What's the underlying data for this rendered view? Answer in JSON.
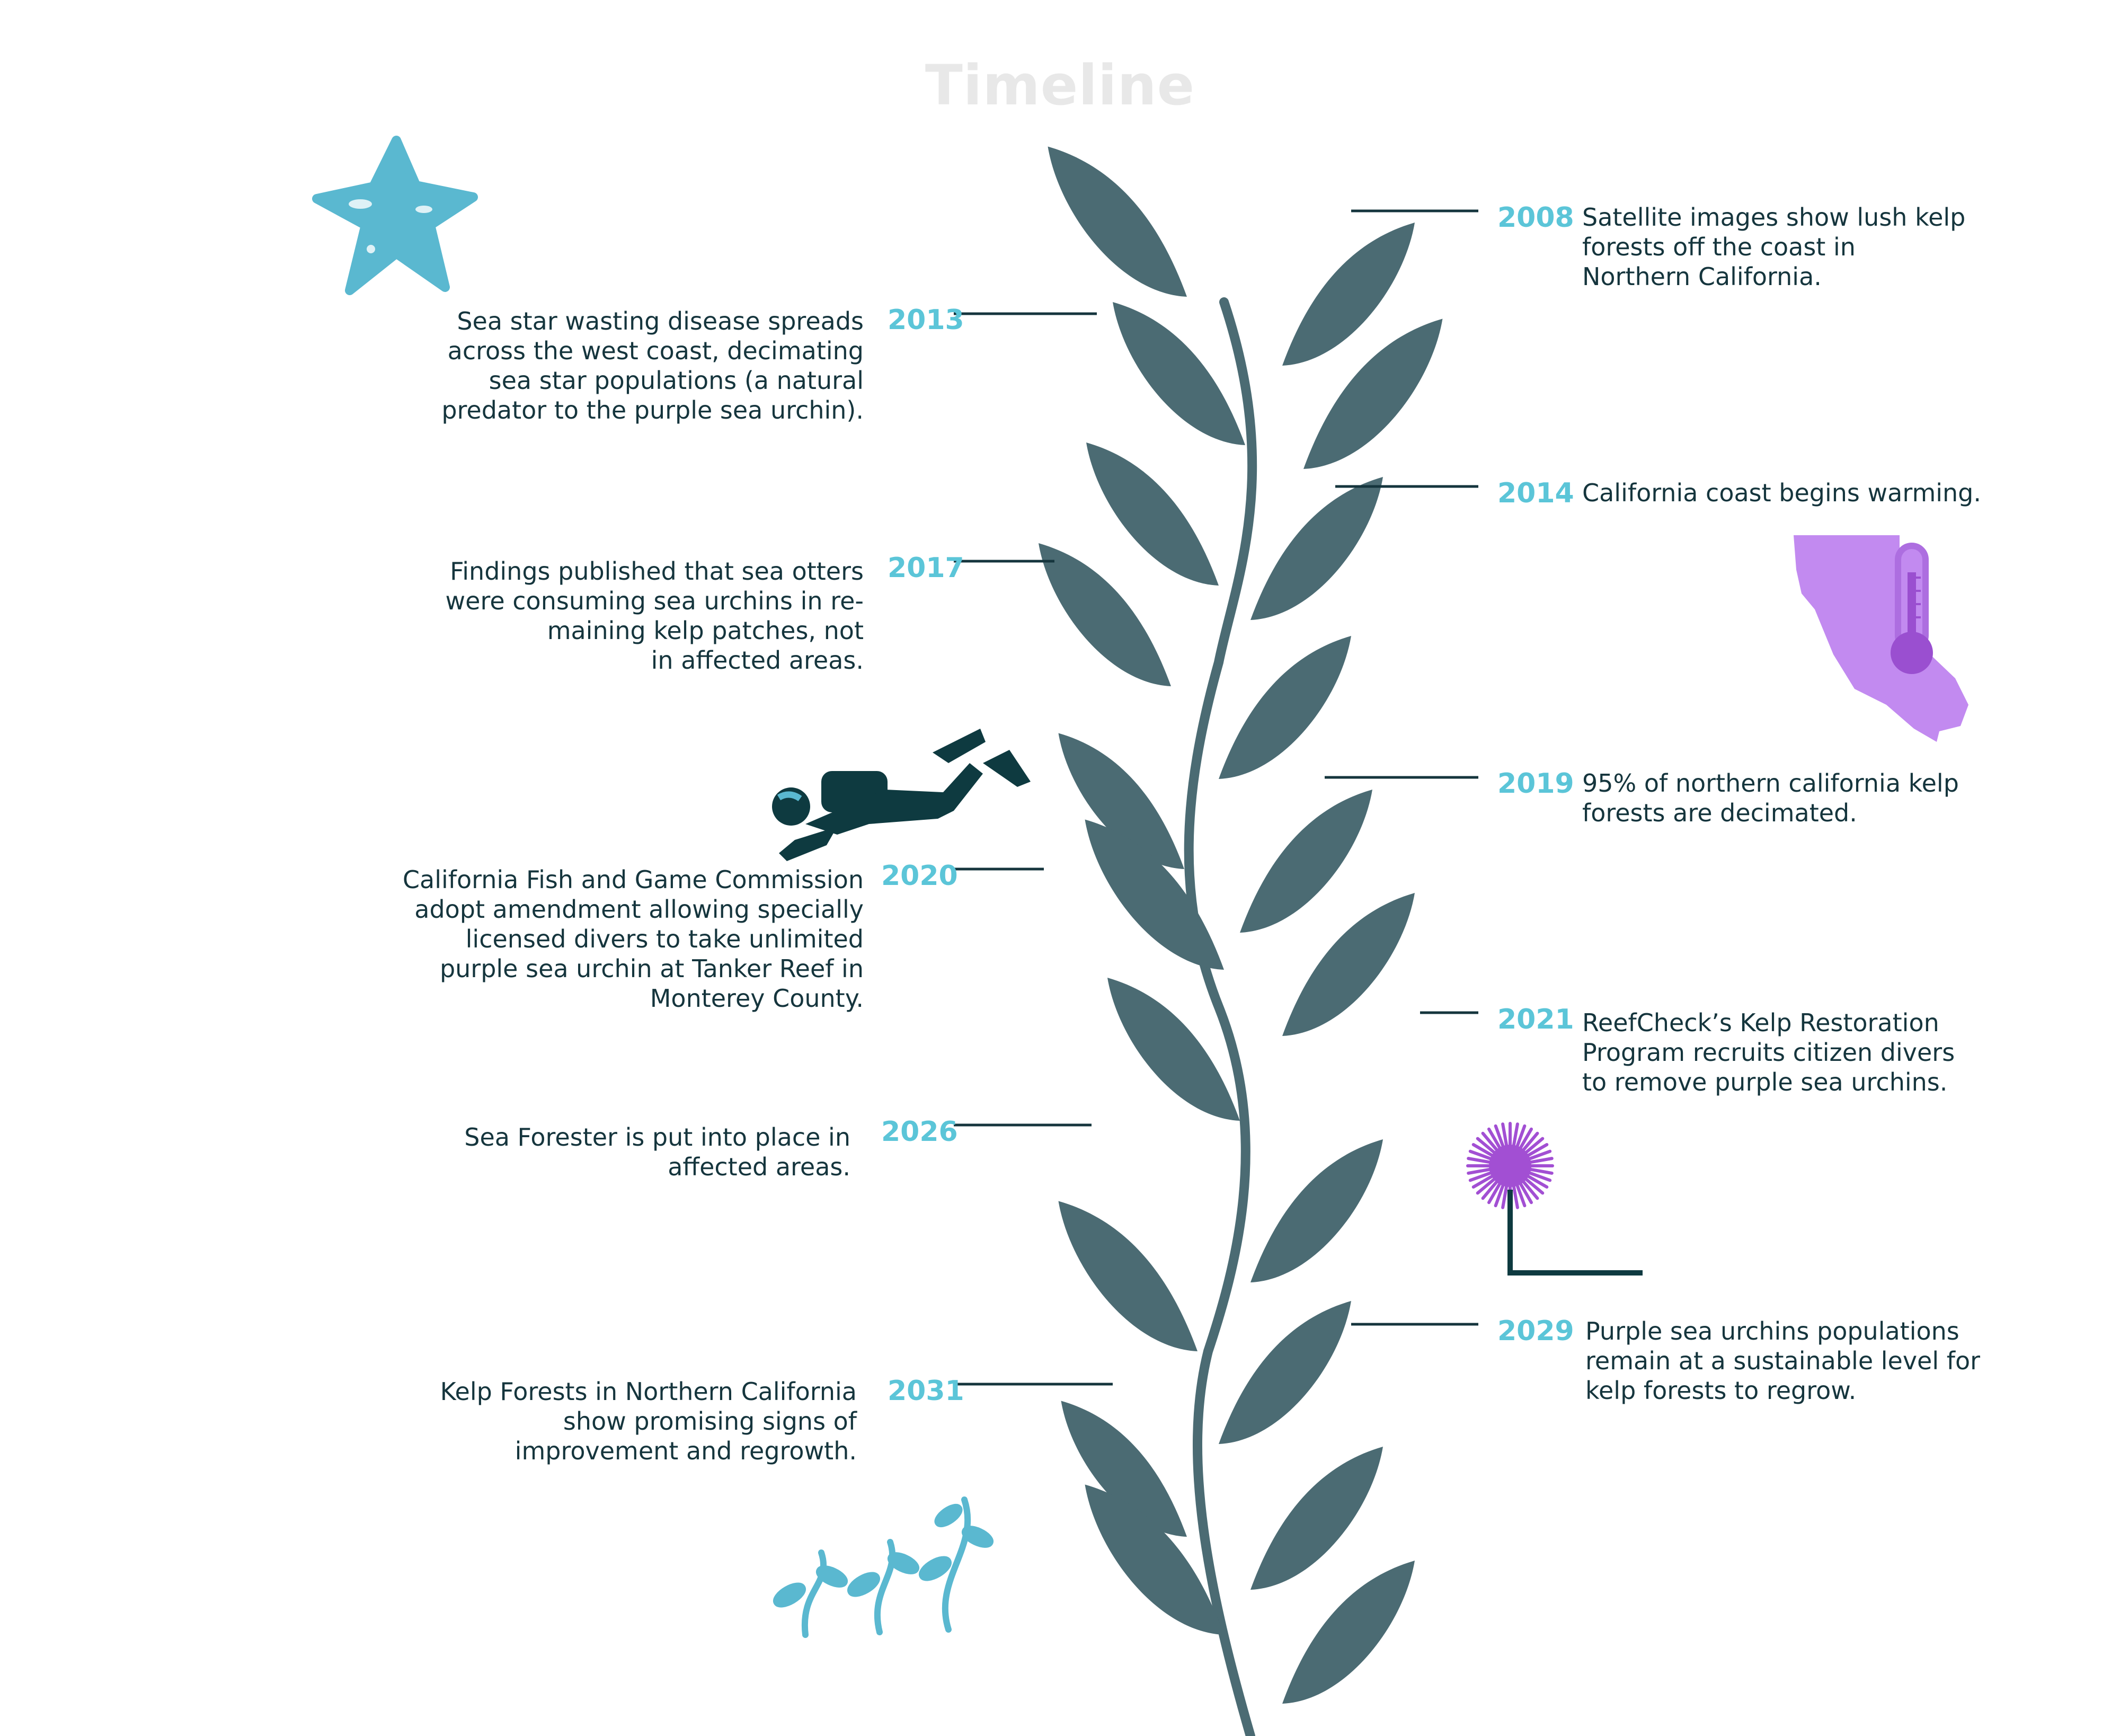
{
  "title": "Timeline",
  "colors": {
    "kelp": "#4b6b73",
    "year": "#5bc5d8",
    "text": "#15353d",
    "accent_purple": "#c28af0",
    "accent_teal": "#5ab8d0"
  },
  "icons": [
    "starfish-icon",
    "california-thermometer-icon",
    "scuba-diver-icon",
    "sea-urchin-icon",
    "seaweed-sprouts-icon"
  ],
  "events": [
    {
      "year": "2008",
      "side": "right",
      "text": "Satellite images show lush kelp\nforests off the coast in\nNorthern California."
    },
    {
      "year": "2013",
      "side": "left",
      "text": "Sea star wasting disease spreads\nacross the west coast, decimating\nsea star populations (a natural\npredator to the purple sea urchin)."
    },
    {
      "year": "2014",
      "side": "right",
      "text": "California coast begins warming."
    },
    {
      "year": "2017",
      "side": "left",
      "text": "Findings published that sea otters\nwere consuming sea urchins in re-\nmaining kelp patches, not\nin affected areas."
    },
    {
      "year": "2019",
      "side": "right",
      "text": "95% of northern california kelp\nforests are decimated."
    },
    {
      "year": "2020",
      "side": "left",
      "text": "California Fish and Game Commission\nadopt amendment allowing specially\nlicensed divers to take unlimited\npurple sea urchin at Tanker Reef in\nMonterey County."
    },
    {
      "year": "2021",
      "side": "right",
      "text": "ReefCheck’s Kelp Restoration\nProgram recruits citizen divers\nto remove purple sea urchins."
    },
    {
      "year": "2026",
      "side": "left",
      "text": "Sea Forester is put into place in\naffected areas."
    },
    {
      "year": "2029",
      "side": "right",
      "text": "Purple sea urchins populations\nremain at a sustainable level for\nkelp forests to regrow."
    },
    {
      "year": "2031",
      "side": "left",
      "text": "Kelp Forests in Northern California\nshow promising signs of\nimprovement and regrowth."
    }
  ]
}
